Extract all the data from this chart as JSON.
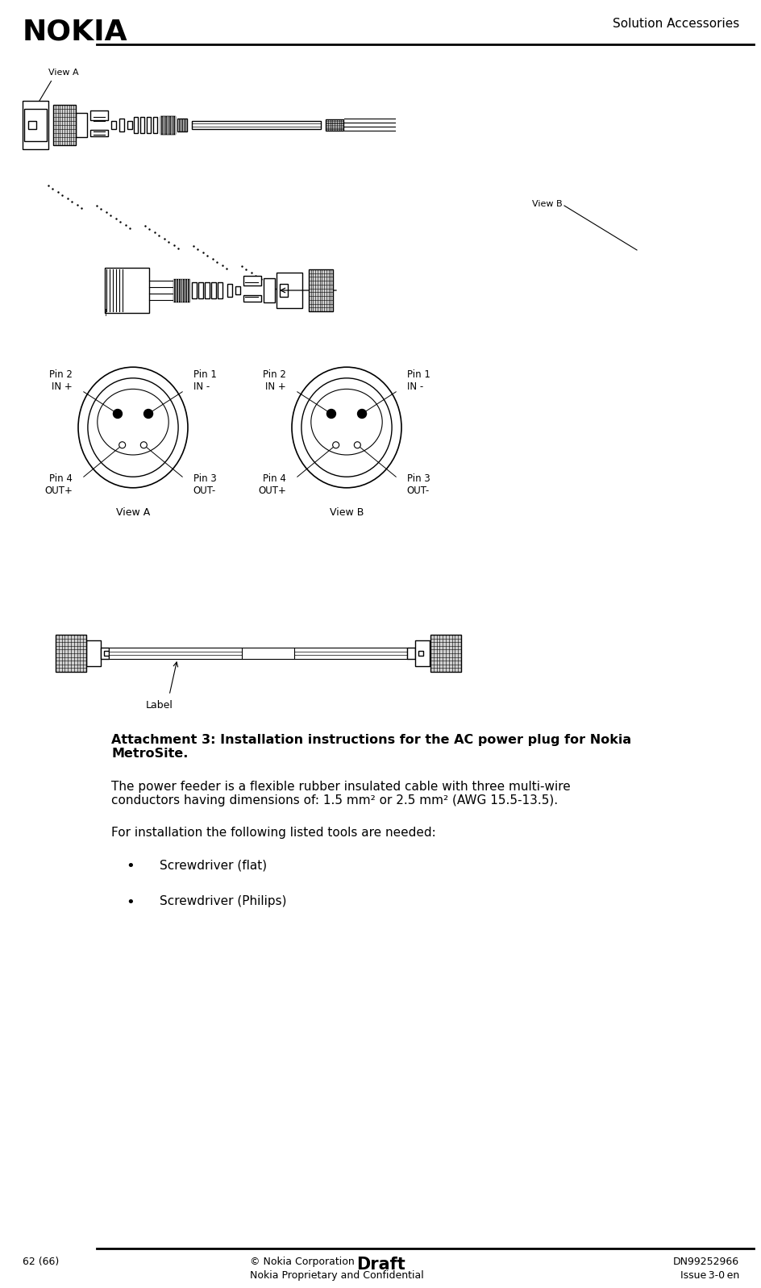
{
  "bg_color": "#ffffff",
  "header_nokia_text": "NOKIA",
  "header_right_text": "Solution Accessories",
  "footer_left": "62 (66)",
  "footer_center_top": "© Nokia Corporation",
  "footer_center_bold": "Draft",
  "footer_center_bottom": "Nokia Proprietary and Confidential",
  "footer_right_top": "DN99252966",
  "footer_right_bottom": "Issue 3-0 en",
  "title_bold": "Attachment 3: Installation instructions for the AC power plug for Nokia\nMetroSite.",
  "para1": "The power feeder is a flexible rubber insulated cable with three multi-wire\nconductors having dimensions of: 1.5 mm² or 2.5 mm² (AWG 15.5-13.5).",
  "para2": "For installation the following listed tools are needed:",
  "bullet1": "Screwdriver (flat)",
  "bullet2": "Screwdriver (Philips)",
  "diag1_view_label": "View A",
  "diag2_view_label": "View B",
  "label_text": "Label",
  "pin2_in_plus": "Pin 2\nIN +",
  "pin1_in_minus": "Pin 1\nIN -",
  "pin4_out_plus": "Pin 4\nOUT+",
  "pin3_out_minus": "Pin 3\nOUT-",
  "view_a": "View A",
  "view_b": "View B"
}
